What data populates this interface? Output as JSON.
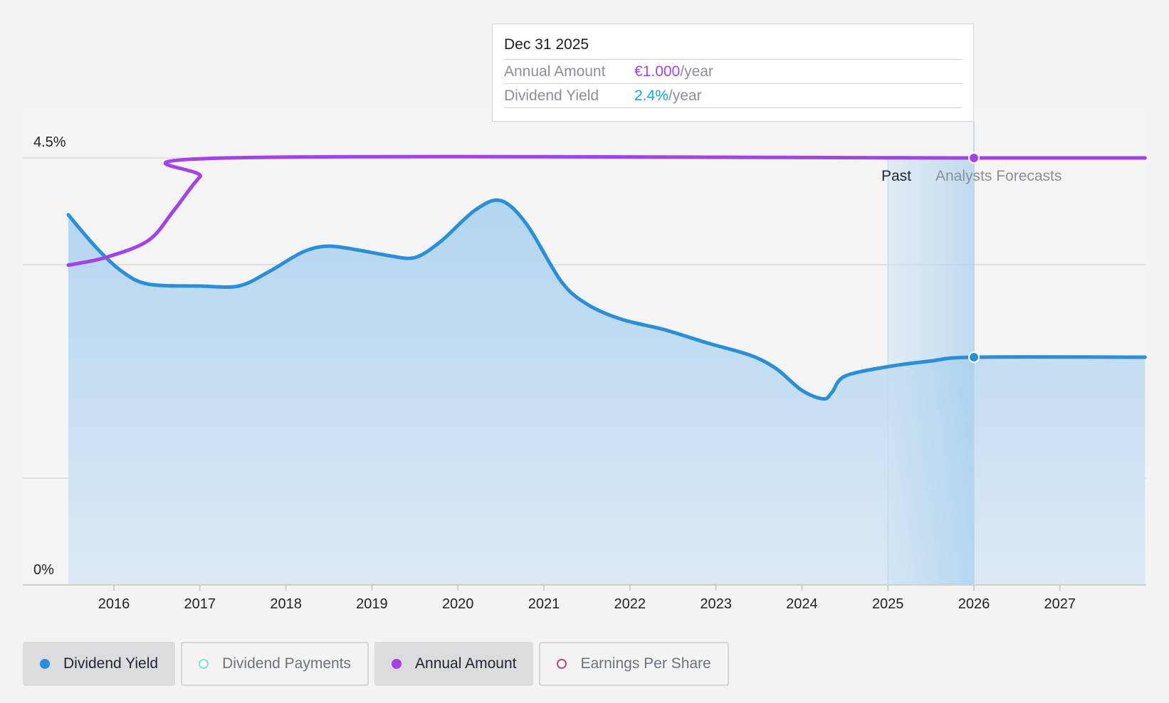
{
  "tooltip": {
    "date": "Dec 31 2025",
    "rows": [
      {
        "label": "Annual Amount",
        "value": "€1.000",
        "unit": "/year"
      },
      {
        "label": "Dividend Yield",
        "value": "2.4%",
        "unit": "/year"
      }
    ]
  },
  "regions": {
    "past": "Past",
    "forecast": "Analysts Forecasts"
  },
  "legend": [
    {
      "label": "Dividend Yield",
      "color": "#2b8fd8",
      "active": true,
      "filled": true
    },
    {
      "label": "Dividend Payments",
      "color": "#7fe0d8",
      "active": false,
      "filled": false
    },
    {
      "label": "Annual Amount",
      "color": "#a442e6",
      "active": true,
      "filled": true
    },
    {
      "label": "Earnings Per Share",
      "color": "#c2417f",
      "active": false,
      "filled": false
    }
  ],
  "colors": {
    "yield": "#2b8fd8",
    "amount": "#a442e6",
    "grid": "#dcdcdc"
  },
  "chart_data": {
    "type": "line",
    "x_ticks": [
      "2016",
      "2017",
      "2018",
      "2019",
      "2020",
      "2021",
      "2022",
      "2023",
      "2024",
      "2025",
      "2026",
      "2027"
    ],
    "y_ticks": [
      "0%",
      "4.5%"
    ],
    "ylim": [
      0,
      4.5
    ],
    "xlim": [
      2015.1,
      2027.99
    ],
    "past_forecast_split": 2025.0,
    "highlight_x": 2026.0,
    "series": [
      {
        "name": "Dividend Yield",
        "points": [
          [
            2015.47,
            3.9
          ],
          [
            2015.8,
            3.55
          ],
          [
            2016.1,
            3.3
          ],
          [
            2016.4,
            3.17
          ],
          [
            2017.0,
            3.15
          ],
          [
            2017.45,
            3.15
          ],
          [
            2017.8,
            3.3
          ],
          [
            2018.2,
            3.51
          ],
          [
            2018.5,
            3.57
          ],
          [
            2018.9,
            3.52
          ],
          [
            2019.2,
            3.47
          ],
          [
            2019.5,
            3.45
          ],
          [
            2019.8,
            3.62
          ],
          [
            2020.2,
            3.95
          ],
          [
            2020.5,
            4.05
          ],
          [
            2020.8,
            3.8
          ],
          [
            2021.2,
            3.2
          ],
          [
            2021.5,
            2.96
          ],
          [
            2021.9,
            2.8
          ],
          [
            2022.4,
            2.69
          ],
          [
            2022.9,
            2.55
          ],
          [
            2023.4,
            2.42
          ],
          [
            2023.7,
            2.28
          ],
          [
            2024.0,
            2.05
          ],
          [
            2024.25,
            1.96
          ],
          [
            2024.35,
            2.03
          ],
          [
            2024.5,
            2.2
          ],
          [
            2025.0,
            2.3
          ],
          [
            2025.5,
            2.36
          ],
          [
            2026.0,
            2.4
          ],
          [
            2027.99,
            2.4
          ]
        ]
      },
      {
        "name": "Annual Amount",
        "points": [
          [
            2015.47,
            3.37
          ],
          [
            2015.9,
            3.45
          ],
          [
            2016.4,
            3.63
          ],
          [
            2016.7,
            3.95
          ],
          [
            2017.0,
            4.3
          ],
          [
            2017.3,
            4.5
          ],
          [
            2026.0,
            4.5
          ],
          [
            2027.99,
            4.5
          ]
        ]
      }
    ]
  }
}
